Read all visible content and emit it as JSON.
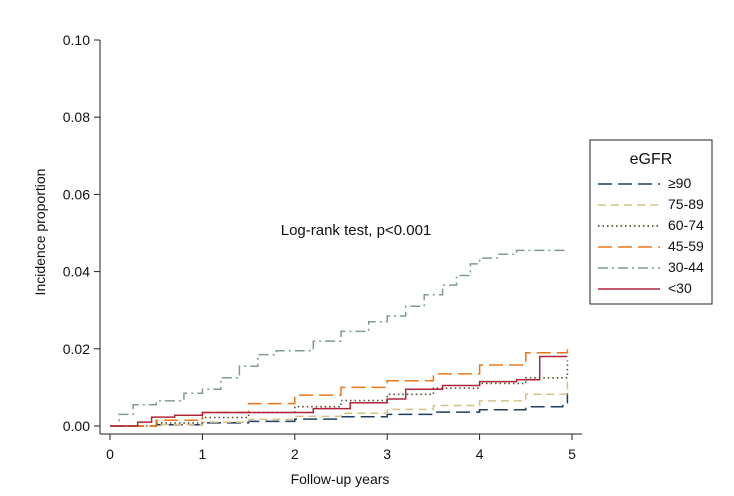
{
  "chart_data": {
    "type": "line",
    "xlabel": "Follow-up years",
    "ylabel": "Incidence proportion",
    "xlim": [
      0,
      5
    ],
    "ylim": [
      0,
      0.1
    ],
    "xticks": [
      "0",
      "1",
      "2",
      "3",
      "4",
      "5"
    ],
    "yticks": [
      "0.00",
      "0.02",
      "0.04",
      "0.06",
      "0.08",
      "0.10"
    ],
    "annotation": "Log-rank test, p<0.001",
    "legend": {
      "title": "eGFR",
      "placement": "right"
    },
    "series": [
      {
        "name": "≥90",
        "color": "#1f3f5f",
        "dash": "long-dash",
        "x": [
          0,
          0.5,
          1,
          1.5,
          2,
          2.5,
          3,
          3.5,
          4,
          4.5,
          4.9,
          4.95,
          4.95
        ],
        "y": [
          0,
          0.0003,
          0.0008,
          0.0012,
          0.0018,
          0.0024,
          0.003,
          0.0036,
          0.0042,
          0.005,
          0.0058,
          0.0062,
          0.0085
        ]
      },
      {
        "name": "75-89",
        "color": "#d6c08a",
        "dash": "short-dash",
        "x": [
          0,
          0.5,
          1,
          1.5,
          2,
          2.5,
          3,
          3.5,
          4,
          4.5,
          4.95
        ],
        "y": [
          0,
          0.0004,
          0.001,
          0.0017,
          0.0025,
          0.0033,
          0.0043,
          0.0053,
          0.0065,
          0.0082,
          0.0115
        ]
      },
      {
        "name": "60-74",
        "color": "#5a4a32",
        "dash": "dot",
        "x": [
          0,
          0.5,
          1,
          1.5,
          2,
          2.5,
          3,
          3.5,
          4,
          4.5,
          4.95
        ],
        "y": [
          0,
          0.0008,
          0.0022,
          0.0035,
          0.005,
          0.0066,
          0.0082,
          0.0098,
          0.011,
          0.0125,
          0.017
        ]
      },
      {
        "name": "45-59",
        "color": "#e8771a",
        "dash": "long-dash",
        "x": [
          0,
          0.5,
          1,
          1.5,
          2,
          2.5,
          3,
          3.5,
          4,
          4.5,
          4.95
        ],
        "y": [
          0,
          0.0015,
          0.0035,
          0.0058,
          0.008,
          0.01,
          0.0117,
          0.0135,
          0.0158,
          0.019,
          0.0205
        ]
      },
      {
        "name": "30-44",
        "color": "#7f9c8f",
        "dash": "dash-dot",
        "x": [
          0,
          0.1,
          0.25,
          0.5,
          0.8,
          1.0,
          1.2,
          1.4,
          1.6,
          1.8,
          2.2,
          2.5,
          2.8,
          3.0,
          3.2,
          3.4,
          3.6,
          3.75,
          3.9,
          4.0,
          4.2,
          4.4,
          4.6,
          4.95
        ],
        "y": [
          0,
          0.003,
          0.0055,
          0.0065,
          0.0085,
          0.0095,
          0.0125,
          0.0155,
          0.0185,
          0.0195,
          0.022,
          0.0245,
          0.027,
          0.0285,
          0.031,
          0.034,
          0.0365,
          0.039,
          0.042,
          0.0435,
          0.0445,
          0.0455,
          0.0455,
          0.0455
        ]
      },
      {
        "name": "<30",
        "color": "#b0243a",
        "dash": "solid",
        "x": [
          0,
          0.3,
          0.45,
          0.7,
          1.0,
          1.5,
          2.2,
          2.6,
          3.0,
          3.2,
          3.6,
          4.0,
          4.4,
          4.65,
          4.95
        ],
        "y": [
          0,
          0.001,
          0.0023,
          0.0028,
          0.0035,
          0.0035,
          0.0045,
          0.006,
          0.007,
          0.0095,
          0.0105,
          0.0115,
          0.012,
          0.018,
          0.018
        ]
      }
    ]
  }
}
